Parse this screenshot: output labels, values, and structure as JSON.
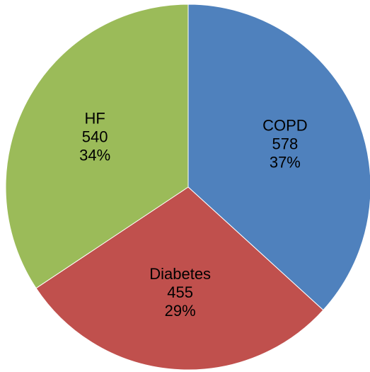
{
  "chart_data": {
    "type": "pie",
    "title": "",
    "start_angle_deg": 0,
    "direction": "clockwise",
    "legend": "none",
    "slices": [
      {
        "label": "COPD",
        "value": 578,
        "percent": "37%",
        "color": "#4F81BD"
      },
      {
        "label": "Diabetes",
        "value": 455,
        "percent": "29%",
        "color": "#C0504D"
      },
      {
        "label": "HF",
        "value": 540,
        "percent": "34%",
        "color": "#9BBB59"
      }
    ]
  }
}
